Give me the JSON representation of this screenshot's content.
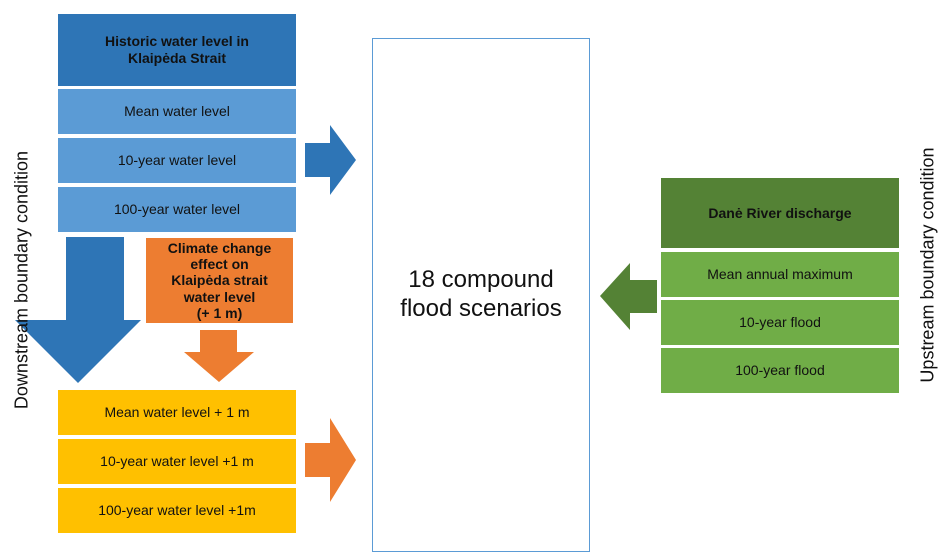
{
  "downstream_label": "Downstream boundary condition",
  "upstream_label": "Upstream boundary condition",
  "historic": {
    "title_lines": [
      "Historic water level in",
      "Klaipėda Strait"
    ],
    "items": [
      "Mean water level",
      "10-year water level",
      "100-year water level"
    ]
  },
  "climate_effect": {
    "lines": [
      "Climate change",
      "effect on",
      "Klaipėda strait",
      "water level",
      "(+ 1 m)"
    ]
  },
  "future": {
    "items": [
      "Mean water level + 1 m",
      "10-year water level +1 m",
      "100-year water level +1m"
    ]
  },
  "scenarios": {
    "lines": [
      "18 compound",
      "flood scenarios"
    ]
  },
  "river": {
    "title": "Danė River discharge",
    "items": [
      "Mean annual maximum",
      "10-year flood",
      "100-year flood"
    ]
  }
}
